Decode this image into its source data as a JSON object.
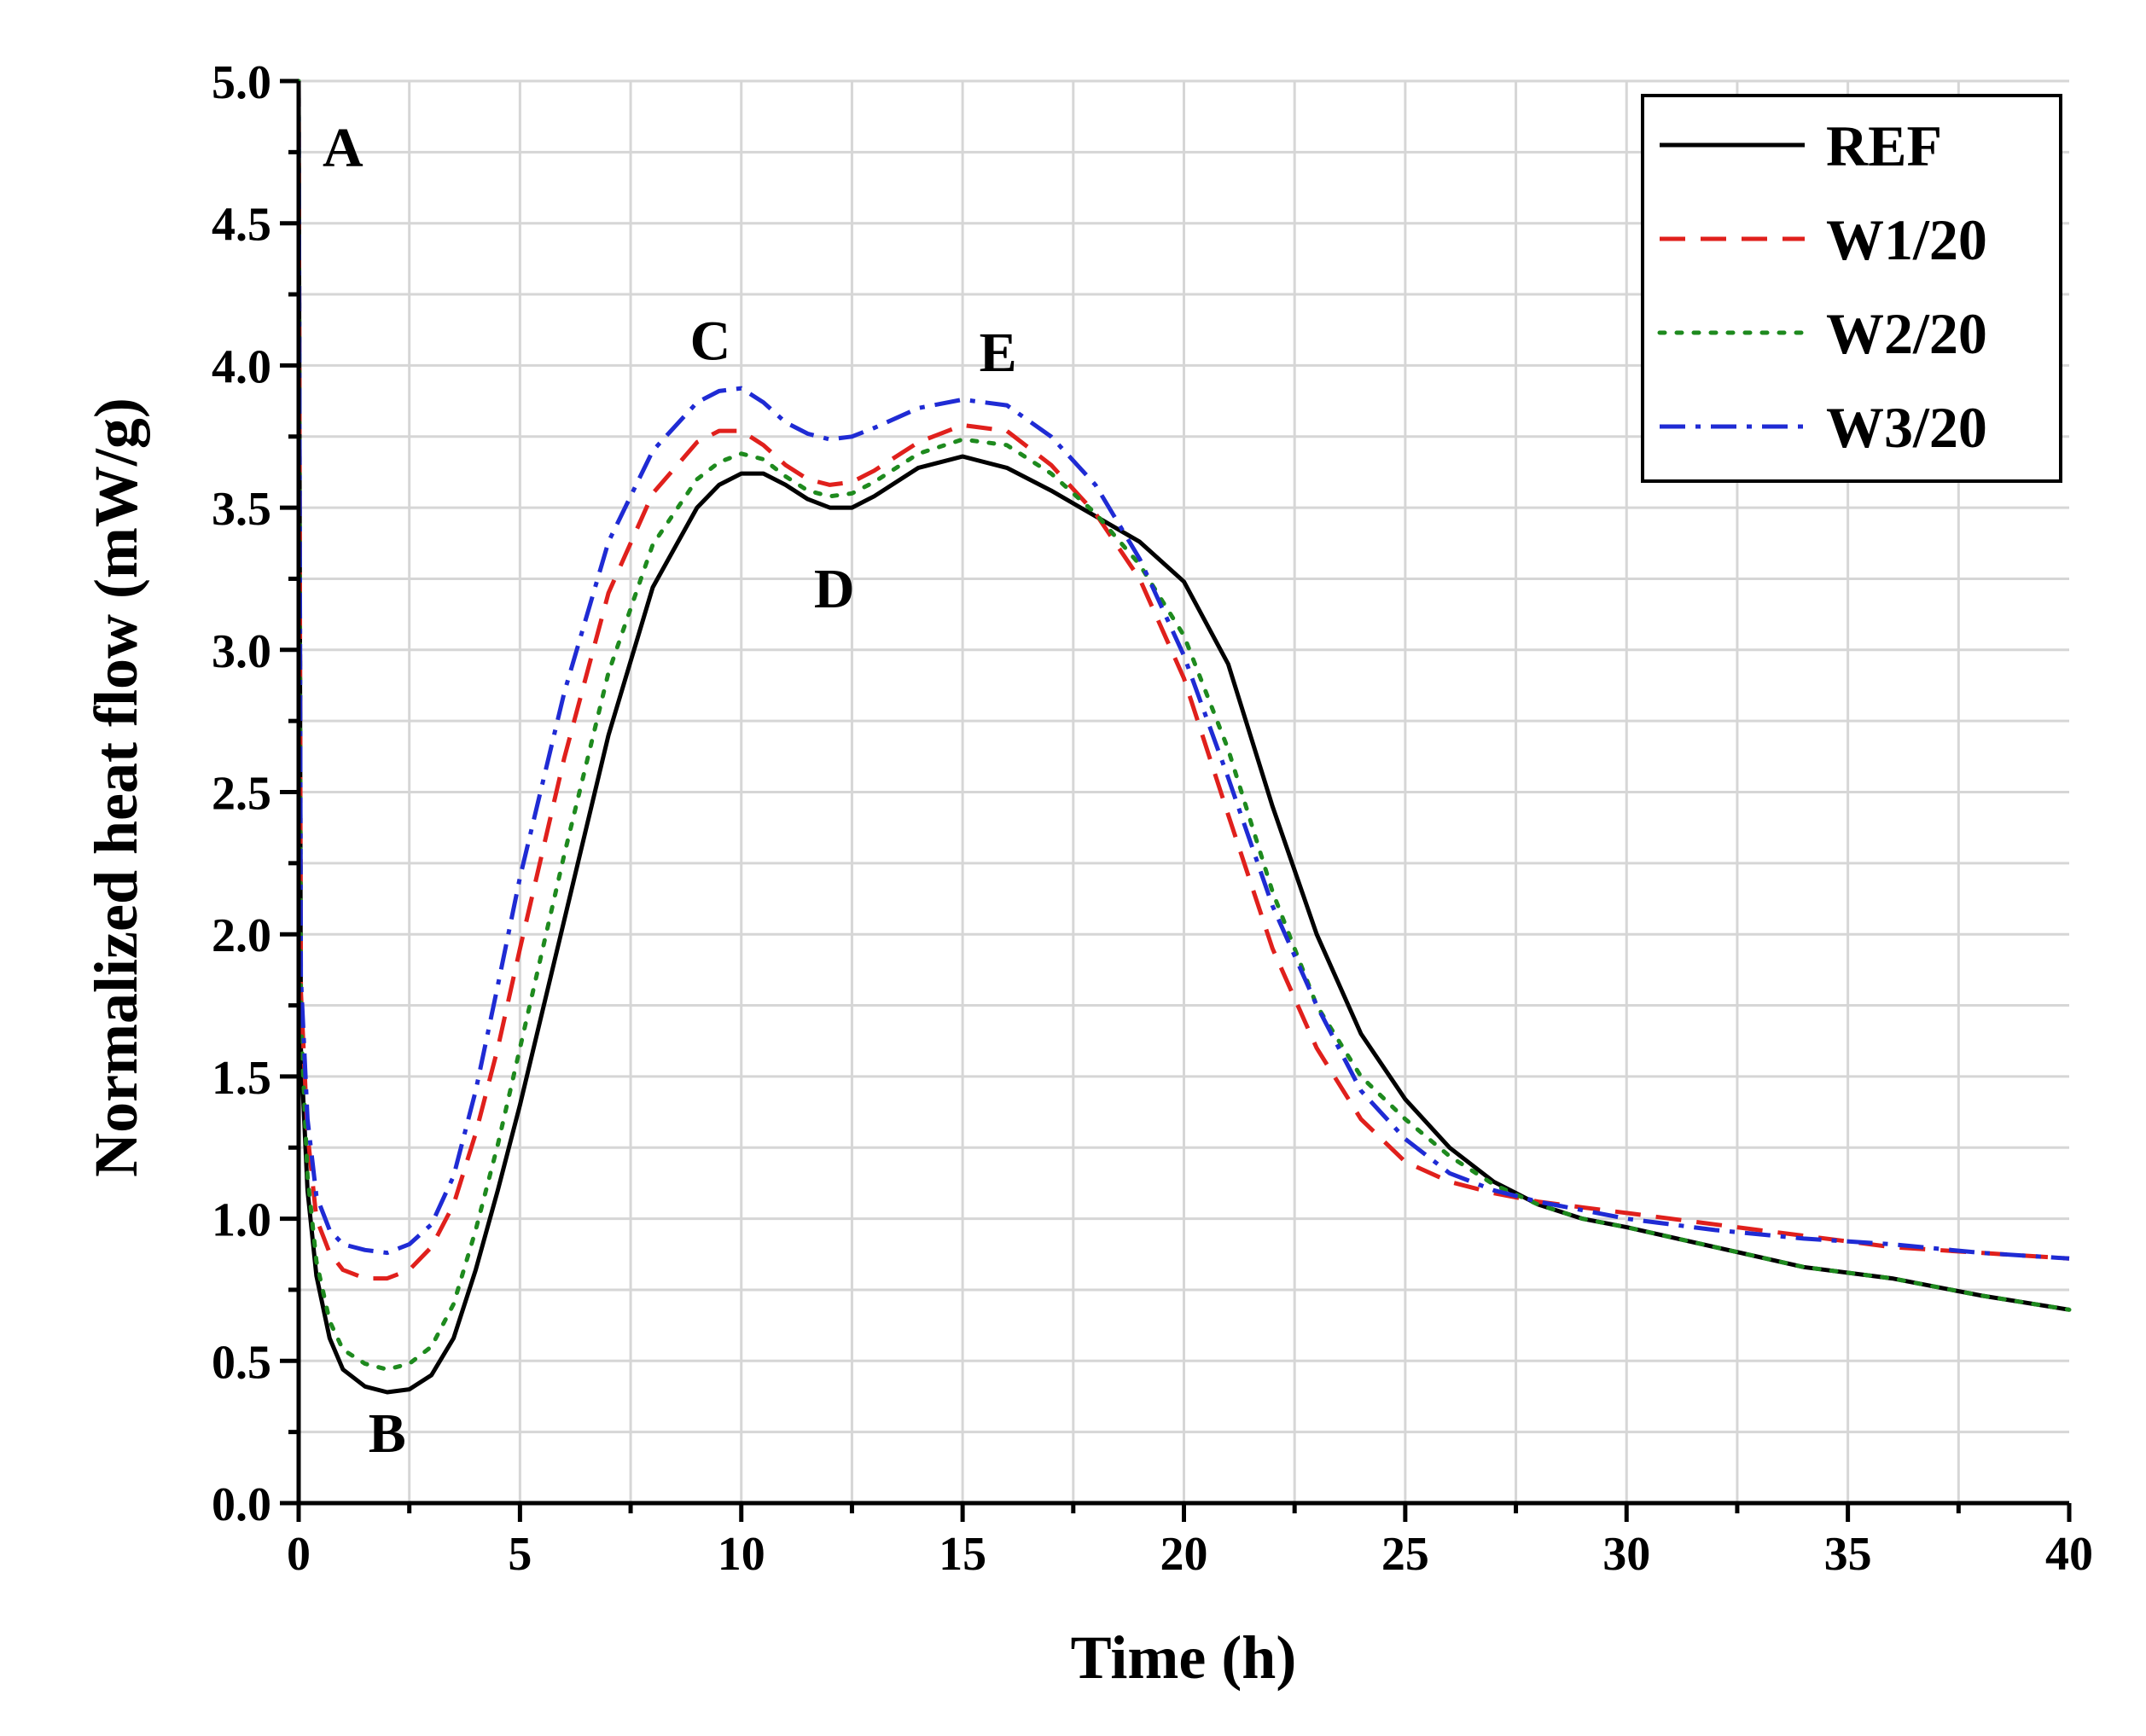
{
  "chart_data": {
    "type": "line",
    "title": "",
    "xlabel": "Time (h)",
    "ylabel": "Normalized heat flow (mW/g)",
    "xlim": [
      0,
      40
    ],
    "ylim": [
      0,
      5.0
    ],
    "xticks": [
      "0",
      "5",
      "10",
      "15",
      "20",
      "25",
      "30",
      "35",
      "40"
    ],
    "yticks": [
      "0.0",
      "0.5",
      "1.0",
      "1.5",
      "2.0",
      "2.5",
      "3.0",
      "3.5",
      "4.0",
      "4.5",
      "5.0"
    ],
    "grid": true,
    "legend_position": "top-right",
    "annotations": [
      {
        "text": "A",
        "x": 1.0,
        "y": 4.7
      },
      {
        "text": "B",
        "x": 2.0,
        "y": 0.18
      },
      {
        "text": "C",
        "x": 9.3,
        "y": 4.02
      },
      {
        "text": "D",
        "x": 12.1,
        "y": 3.15
      },
      {
        "text": "E",
        "x": 15.8,
        "y": 3.98
      }
    ],
    "series": [
      {
        "name": "REF",
        "color": "#000000",
        "dash": "solid",
        "x": [
          0,
          0.05,
          0.2,
          0.4,
          0.7,
          1.0,
          1.5,
          2.0,
          2.5,
          3.0,
          3.5,
          4.0,
          4.5,
          5.0,
          6.0,
          7.0,
          8.0,
          9.0,
          9.5,
          10.0,
          10.5,
          11.0,
          11.5,
          12.0,
          12.5,
          13.0,
          14.0,
          15.0,
          16.0,
          17.0,
          18.0,
          19.0,
          20.0,
          21.0,
          22.0,
          23.0,
          24.0,
          25.0,
          26.0,
          27.0,
          28.0,
          29.0,
          30.0,
          32.0,
          34.0,
          36.0,
          38.0,
          40.0
        ],
        "y": [
          5.0,
          1.6,
          1.1,
          0.8,
          0.58,
          0.47,
          0.41,
          0.39,
          0.4,
          0.45,
          0.58,
          0.82,
          1.1,
          1.4,
          2.05,
          2.7,
          3.22,
          3.5,
          3.58,
          3.62,
          3.62,
          3.58,
          3.53,
          3.5,
          3.5,
          3.54,
          3.64,
          3.68,
          3.64,
          3.56,
          3.47,
          3.38,
          3.24,
          2.95,
          2.45,
          2.0,
          1.65,
          1.42,
          1.25,
          1.13,
          1.05,
          1.0,
          0.97,
          0.9,
          0.83,
          0.79,
          0.73,
          0.68
        ]
      },
      {
        "name": "W1/20",
        "color": "#e0201c",
        "dash": "dashed",
        "x": [
          0,
          0.05,
          0.2,
          0.4,
          0.7,
          1.0,
          1.5,
          2.0,
          2.5,
          3.0,
          3.5,
          4.0,
          4.5,
          5.0,
          6.0,
          7.0,
          8.0,
          9.0,
          9.5,
          10.0,
          10.5,
          11.0,
          11.5,
          12.0,
          12.5,
          13.0,
          14.0,
          15.0,
          16.0,
          17.0,
          18.0,
          19.0,
          20.0,
          21.0,
          22.0,
          23.0,
          24.0,
          25.0,
          26.0,
          27.0,
          28.0,
          29.0,
          30.0,
          32.0,
          34.0,
          36.0,
          38.0,
          40.0
        ],
        "y": [
          5.0,
          1.8,
          1.3,
          1.0,
          0.88,
          0.82,
          0.79,
          0.79,
          0.82,
          0.9,
          1.05,
          1.3,
          1.6,
          1.95,
          2.62,
          3.2,
          3.55,
          3.73,
          3.77,
          3.77,
          3.72,
          3.65,
          3.6,
          3.58,
          3.59,
          3.63,
          3.73,
          3.79,
          3.77,
          3.65,
          3.48,
          3.25,
          2.9,
          2.42,
          1.95,
          1.6,
          1.35,
          1.2,
          1.13,
          1.09,
          1.06,
          1.04,
          1.02,
          0.98,
          0.94,
          0.9,
          0.88,
          0.86
        ]
      },
      {
        "name": "W2/20",
        "color": "#1e8a1e",
        "dash": "dotted",
        "x": [
          0,
          0.05,
          0.2,
          0.4,
          0.7,
          1.0,
          1.5,
          2.0,
          2.5,
          3.0,
          3.5,
          4.0,
          4.5,
          5.0,
          6.0,
          7.0,
          8.0,
          9.0,
          9.5,
          10.0,
          10.5,
          11.0,
          11.5,
          12.0,
          12.5,
          13.0,
          14.0,
          15.0,
          16.0,
          17.0,
          18.0,
          19.0,
          20.0,
          21.0,
          22.0,
          23.0,
          24.0,
          25.0,
          26.0,
          27.0,
          28.0,
          29.0,
          30.0,
          32.0,
          34.0,
          36.0,
          38.0,
          40.0
        ],
        "y": [
          5.0,
          1.7,
          1.15,
          0.85,
          0.64,
          0.54,
          0.49,
          0.47,
          0.49,
          0.55,
          0.7,
          0.96,
          1.26,
          1.6,
          2.28,
          2.92,
          3.37,
          3.6,
          3.66,
          3.69,
          3.67,
          3.61,
          3.56,
          3.54,
          3.55,
          3.59,
          3.69,
          3.74,
          3.72,
          3.62,
          3.48,
          3.3,
          3.05,
          2.65,
          2.15,
          1.75,
          1.5,
          1.35,
          1.22,
          1.12,
          1.05,
          1.0,
          0.97,
          0.9,
          0.83,
          0.79,
          0.73,
          0.68
        ]
      },
      {
        "name": "W3/20",
        "color": "#1f2bd4",
        "dash": "dashdot",
        "x": [
          0,
          0.05,
          0.2,
          0.4,
          0.7,
          1.0,
          1.5,
          2.0,
          2.5,
          3.0,
          3.5,
          4.0,
          4.5,
          5.0,
          6.0,
          7.0,
          8.0,
          9.0,
          9.5,
          10.0,
          10.5,
          11.0,
          11.5,
          12.0,
          12.5,
          13.0,
          14.0,
          15.0,
          16.0,
          17.0,
          18.0,
          19.0,
          20.0,
          21.0,
          22.0,
          23.0,
          24.0,
          25.0,
          26.0,
          27.0,
          28.0,
          29.0,
          30.0,
          32.0,
          34.0,
          36.0,
          38.0,
          40.0
        ],
        "y": [
          5.0,
          1.85,
          1.35,
          1.08,
          0.96,
          0.91,
          0.89,
          0.88,
          0.91,
          0.98,
          1.15,
          1.45,
          1.82,
          2.2,
          2.85,
          3.38,
          3.7,
          3.87,
          3.91,
          3.92,
          3.87,
          3.8,
          3.76,
          3.74,
          3.75,
          3.78,
          3.85,
          3.88,
          3.86,
          3.75,
          3.58,
          3.32,
          2.98,
          2.55,
          2.1,
          1.75,
          1.45,
          1.28,
          1.16,
          1.1,
          1.06,
          1.03,
          1.0,
          0.96,
          0.93,
          0.91,
          0.88,
          0.86
        ]
      }
    ]
  }
}
